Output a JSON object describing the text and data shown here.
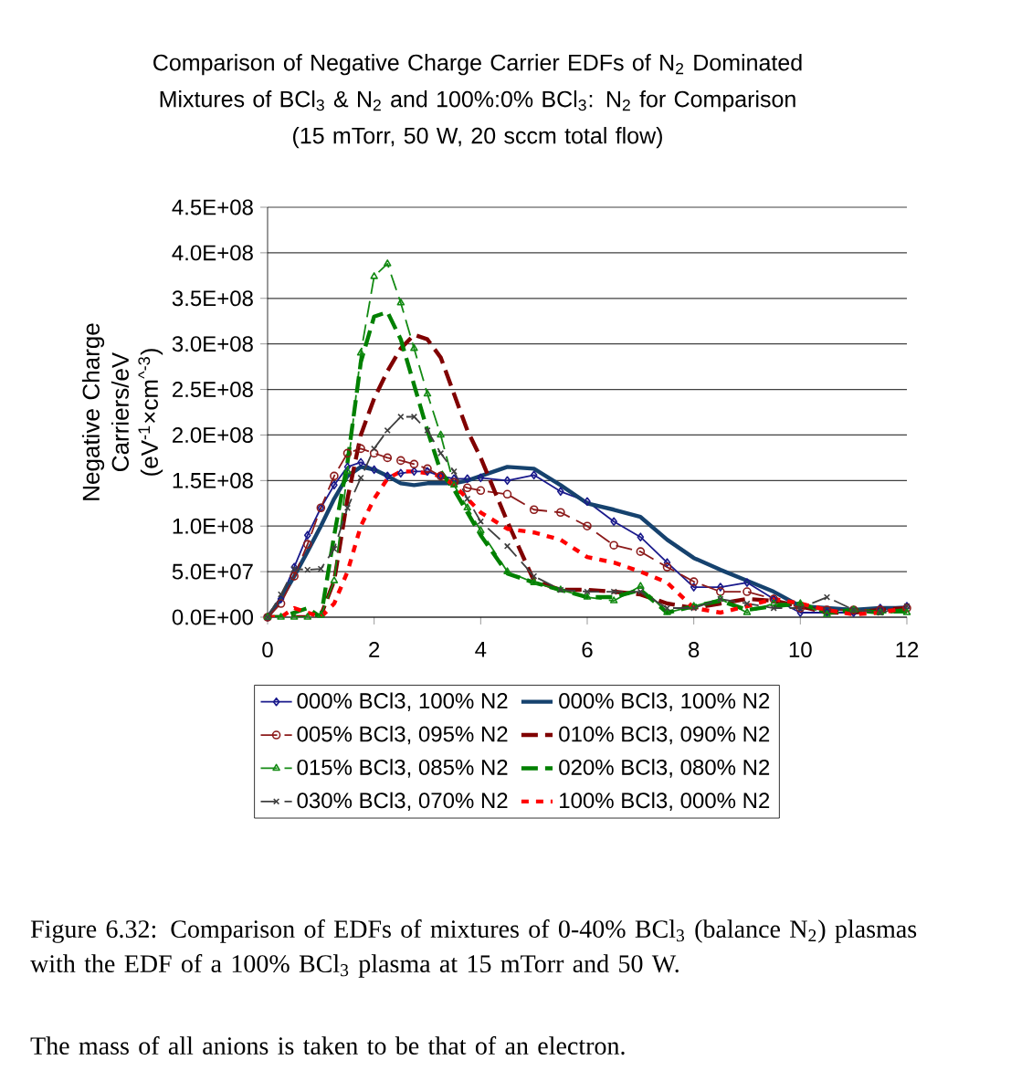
{
  "chart_data": {
    "type": "line",
    "title": "Comparison of Negative Charge Carrier EDFs of N$_{2}$ Dominated Mixtures of BCl$_{3}$ & N$_{2}$ and 100%:0% BCl$_{3}$: N$_{2}$ for Comparison",
    "subtitle": "(15 mTorr, 50 W, 20 sccm total flow)",
    "ylabel": "Negative Charge Carriers/eV (eV$^{-1}$×cm$^{^-3}$)",
    "annotations": [
      "Figure 6.32: Comparison of EDFs of mixtures of 0-40% BCl$_{3}$ (balance N$_{2}$) plasmas with the EDF of a 100% BCl$_{3}$ plasma at 15 mTorr and 50 W.",
      "The mass of all anions is taken to be that of an electron."
    ],
    "x": [
      0,
      0.25,
      0.5,
      0.75,
      1,
      1.25,
      1.5,
      1.75,
      2,
      2.25,
      2.5,
      2.75,
      3,
      3.25,
      3.5,
      3.75,
      4,
      4.5,
      5,
      5.5,
      6,
      6.5,
      7,
      7.5,
      8,
      8.5,
      9,
      9.5,
      10,
      10.5,
      11,
      11.5,
      12
    ],
    "series": [
      {
        "name": "000% BCl3, 100% N2",
        "color": "#1a1a8c",
        "marker": "diamond",
        "line_style": "solid",
        "values": [
          0,
          20000000.0,
          55000000.0,
          90000000.0,
          120000000.0,
          145000000.0,
          165000000.0,
          170000000.0,
          162000000.0,
          155000000.0,
          158000000.0,
          160000000.0,
          160000000.0,
          155000000.0,
          152000000.0,
          152000000.0,
          153000000.0,
          150000000.0,
          156000000.0,
          138000000.0,
          127000000.0,
          105000000.0,
          88000000.0,
          60000000.0,
          33000000.0,
          33000000.0,
          38000000.0,
          20000000.0,
          5000000.0,
          5000000.0,
          5000000.0,
          10000000.0,
          12000000.0
        ]
      },
      {
        "name": "000% BCl3, 100% N2",
        "color": "#16426e",
        "marker": "none",
        "line_style": "solid",
        "values": [
          0,
          20000000.0,
          45000000.0,
          72000000.0,
          100000000.0,
          130000000.0,
          155000000.0,
          165000000.0,
          162000000.0,
          155000000.0,
          147000000.0,
          145000000.0,
          147000000.0,
          147000000.0,
          147000000.0,
          150000000.0,
          155000000.0,
          165000000.0,
          163000000.0,
          145000000.0,
          125000000.0,
          118000000.0,
          110000000.0,
          85000000.0,
          65000000.0,
          52000000.0,
          40000000.0,
          28000000.0,
          12000000.0,
          10000000.0,
          8000000.0,
          10000000.0,
          10000000.0
        ]
      },
      {
        "name": "005% BCl3, 095% N2",
        "color": "#8c1a1a",
        "marker": "circle",
        "line_style": "dashed",
        "values": [
          0,
          15000000.0,
          45000000.0,
          80000000.0,
          120000000.0,
          155000000.0,
          180000000.0,
          185000000.0,
          180000000.0,
          175000000.0,
          172000000.0,
          168000000.0,
          163000000.0,
          155000000.0,
          148000000.0,
          142000000.0,
          139000000.0,
          135000000.0,
          118000000.0,
          115000000.0,
          100000000.0,
          79000000.0,
          72000000.0,
          55000000.0,
          39000000.0,
          28000000.0,
          28000000.0,
          20000000.0,
          10000000.0,
          8000000.0,
          8000000.0,
          8000000.0,
          10000000.0
        ]
      },
      {
        "name": "010% BCl3, 090% N2",
        "color": "#800000",
        "marker": "none",
        "line_style": "dashed",
        "values": [
          0,
          0,
          0,
          0,
          2000000.0,
          40000000.0,
          130000000.0,
          200000000.0,
          240000000.0,
          270000000.0,
          295000000.0,
          310000000.0,
          305000000.0,
          285000000.0,
          245000000.0,
          205000000.0,
          175000000.0,
          105000000.0,
          40000000.0,
          30000000.0,
          30000000.0,
          28000000.0,
          25000000.0,
          15000000.0,
          10000000.0,
          15000000.0,
          20000000.0,
          18000000.0,
          12000000.0,
          5000000.0,
          5000000.0,
          8000000.0,
          10000000.0
        ]
      },
      {
        "name": "015% BCl3, 085% N2",
        "color": "#138a13",
        "marker": "triangle",
        "line_style": "dashed",
        "values": [
          0,
          0,
          0,
          0,
          2000000.0,
          40000000.0,
          160000000.0,
          290000000.0,
          374000000.0,
          388000000.0,
          345000000.0,
          295000000.0,
          245000000.0,
          200000000.0,
          145000000.0,
          120000000.0,
          95000000.0,
          50000000.0,
          38000000.0,
          30000000.0,
          22000000.0,
          18000000.0,
          34000000.0,
          5000000.0,
          12000000.0,
          20000000.0,
          5000000.0,
          15000000.0,
          15000000.0,
          3000000.0,
          8000000.0,
          5000000.0,
          5000000.0
        ]
      },
      {
        "name": "020% BCl3, 080% N2",
        "color": "#008000",
        "marker": "none",
        "line_style": "dashed",
        "values": [
          0,
          0,
          5000000.0,
          10000000.0,
          0,
          90000000.0,
          170000000.0,
          280000000.0,
          330000000.0,
          335000000.0,
          305000000.0,
          255000000.0,
          205000000.0,
          160000000.0,
          140000000.0,
          115000000.0,
          90000000.0,
          48000000.0,
          38000000.0,
          30000000.0,
          22000000.0,
          22000000.0,
          30000000.0,
          5000000.0,
          12000000.0,
          18000000.0,
          8000000.0,
          12000000.0,
          15000000.0,
          5000000.0,
          8000000.0,
          5000000.0,
          8000000.0
        ]
      },
      {
        "name": "030% BCl3, 070% N2",
        "color": "#404040",
        "marker": "cross",
        "line_style": "dashed",
        "values": [
          0,
          25000000.0,
          53000000.0,
          52000000.0,
          53000000.0,
          75000000.0,
          120000000.0,
          153000000.0,
          185000000.0,
          205000000.0,
          220000000.0,
          220000000.0,
          205000000.0,
          180000000.0,
          160000000.0,
          130000000.0,
          105000000.0,
          78000000.0,
          45000000.0,
          30000000.0,
          28000000.0,
          28000000.0,
          28000000.0,
          10000000.0,
          10000000.0,
          20000000.0,
          15000000.0,
          10000000.0,
          10000000.0,
          22000000.0,
          8000000.0,
          5000000.0,
          12000000.0
        ]
      },
      {
        "name": "100% BCl3, 000% N2",
        "color": "#ff0000",
        "marker": "none",
        "line_style": "dotted",
        "values": [
          0,
          0,
          10000000.0,
          5000000.0,
          0,
          15000000.0,
          50000000.0,
          100000000.0,
          130000000.0,
          152000000.0,
          160000000.0,
          160000000.0,
          158000000.0,
          155000000.0,
          145000000.0,
          130000000.0,
          115000000.0,
          97000000.0,
          93000000.0,
          85000000.0,
          66000000.0,
          60000000.0,
          50000000.0,
          38000000.0,
          10000000.0,
          5000000.0,
          12000000.0,
          20000000.0,
          15000000.0,
          8000000.0,
          3000000.0,
          5000000.0,
          10000000.0
        ]
      }
    ],
    "xlim": [
      0,
      12
    ],
    "xticks": [
      0,
      2,
      4,
      6,
      8,
      10,
      12
    ],
    "ylim": [
      0,
      450000000.0
    ],
    "yticks": [
      {
        "value": 0,
        "label": "0.0E+00"
      },
      {
        "value": 50000000.0,
        "label": "5.0E+07"
      },
      {
        "value": 100000000.0,
        "label": "1.0E+08"
      },
      {
        "value": 150000000.0,
        "label": "1.5E+08"
      },
      {
        "value": 200000000.0,
        "label": "2.0E+08"
      },
      {
        "value": 250000000.0,
        "label": "2.5E+08"
      },
      {
        "value": 300000000.0,
        "label": "3.0E+08"
      },
      {
        "value": 350000000.0,
        "label": "3.5E+08"
      },
      {
        "value": 400000000.0,
        "label": "4.0E+08"
      },
      {
        "value": 450000000.0,
        "label": "4.5E+08"
      }
    ],
    "grid": "y",
    "legend": "bottom"
  }
}
